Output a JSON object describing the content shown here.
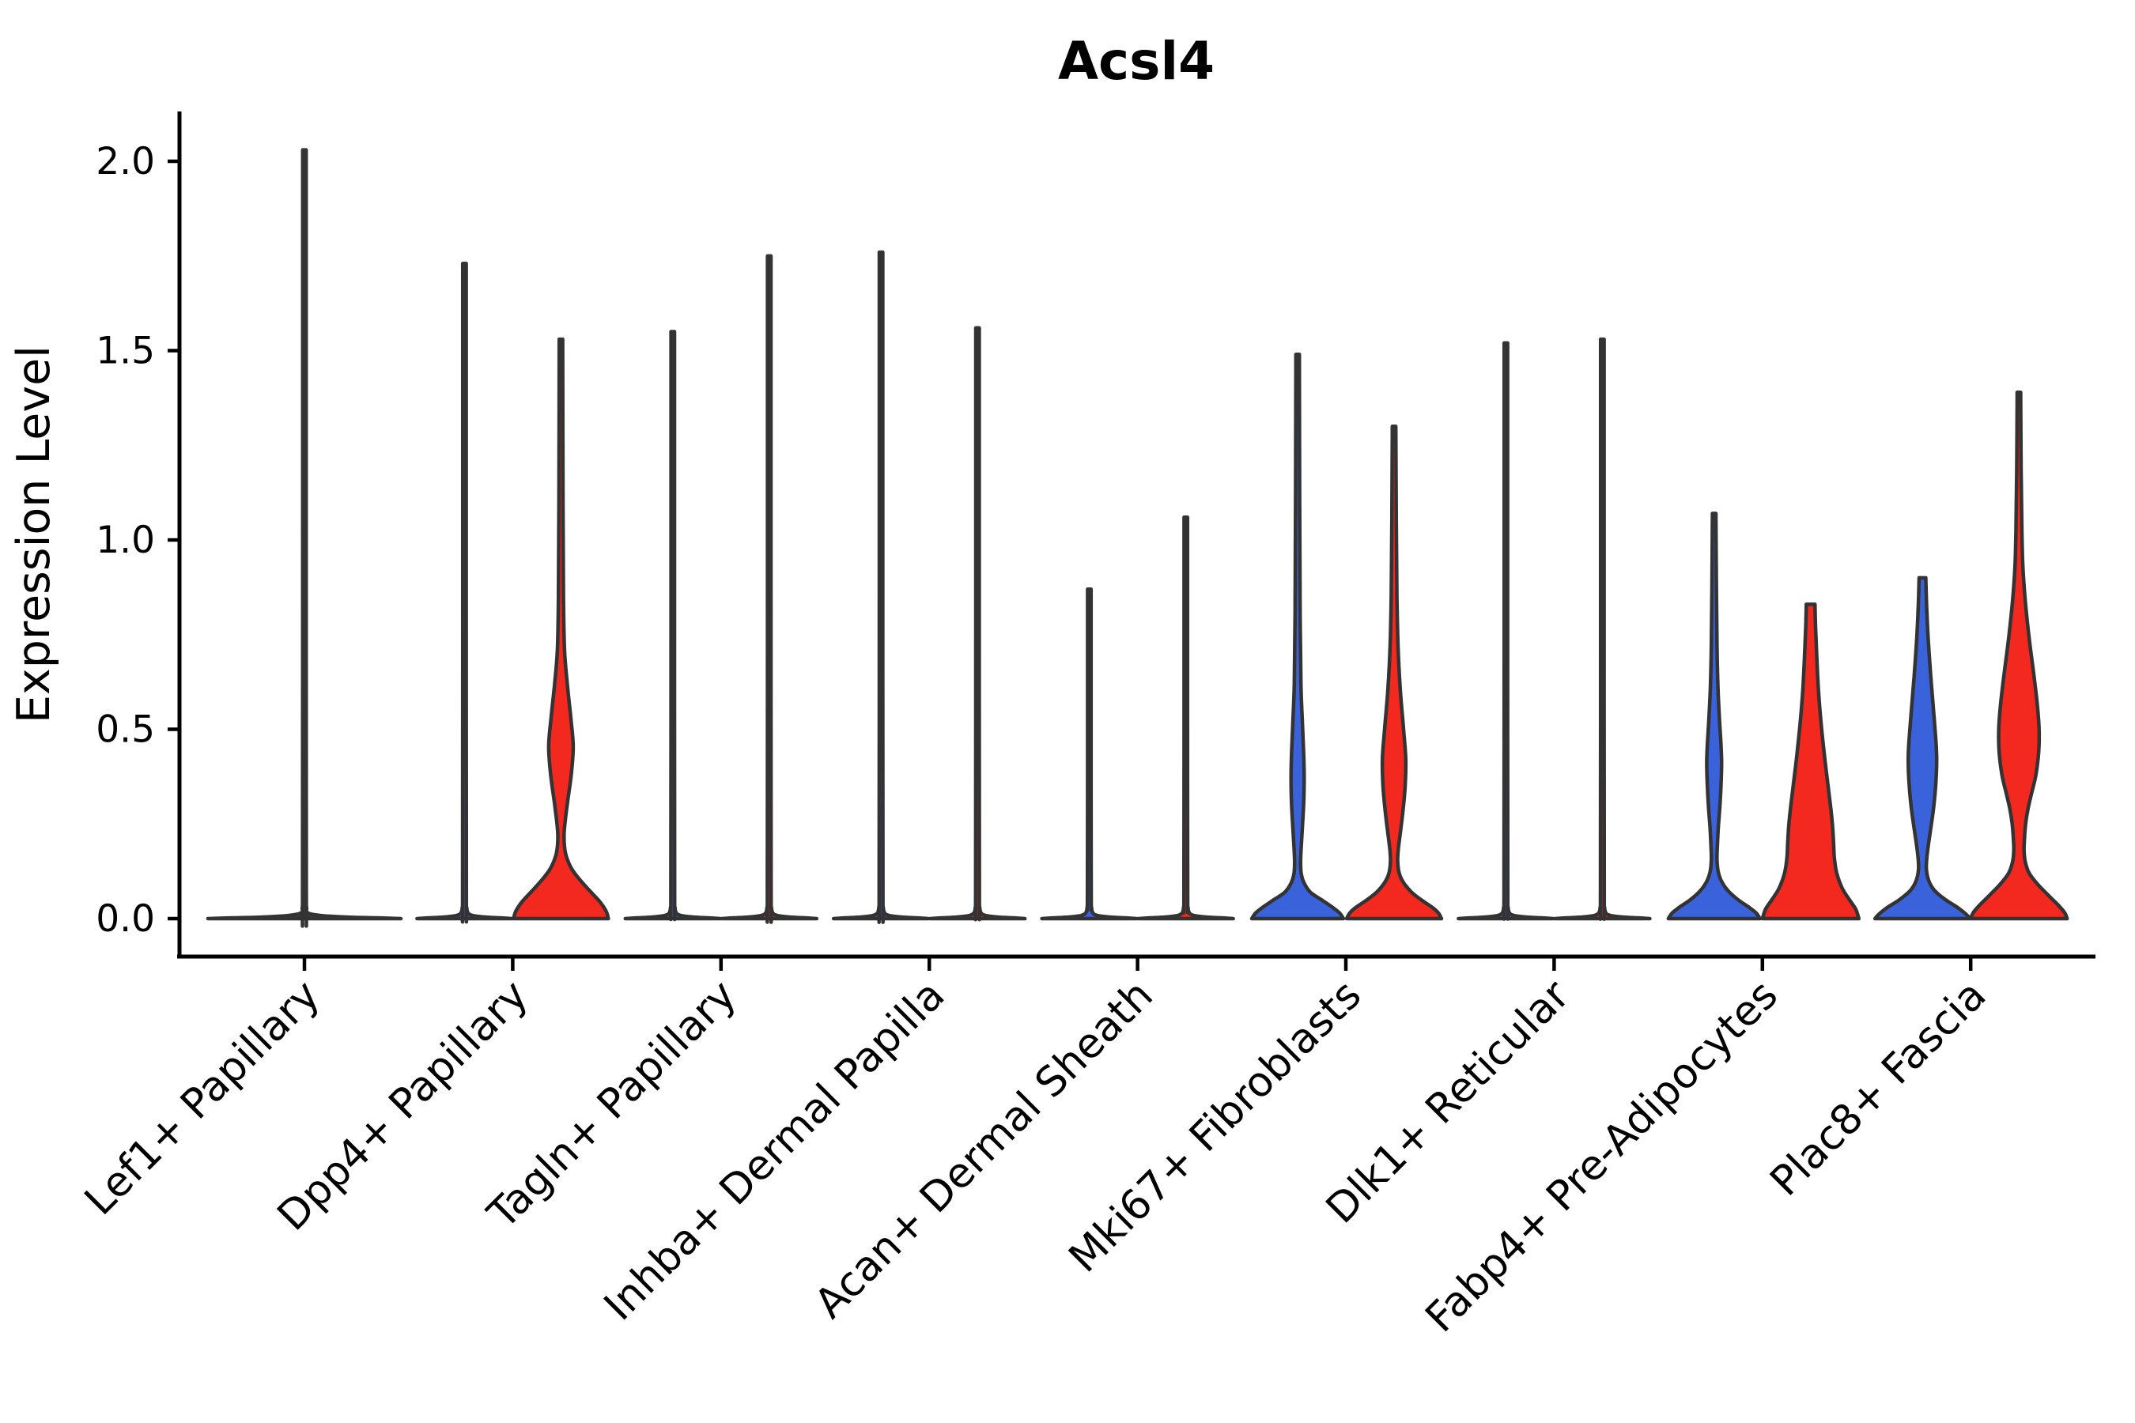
{
  "chart_data": {
    "type": "violin",
    "title": "Acsl4",
    "ylabel": "Expression Level",
    "xlabel": "",
    "ylim": [
      0,
      2.25
    ],
    "yticks": [
      0.0,
      0.5,
      1.0,
      1.5,
      2.0
    ],
    "ytick_labels": [
      "0.0",
      "0.5",
      "1.0",
      "1.5",
      "2.0"
    ],
    "grid": false,
    "legend_position": "none",
    "background_color": "#ffffff",
    "axis_color": "#000000",
    "outline_color": "#333333",
    "groups": {
      "blue": "#3A63DB",
      "red": "#F3281F",
      "single": "#3a3a3a"
    },
    "categories": [
      "Lef1+ Papillary",
      "Dpp4+ Papillary",
      "Tagln+ Papillary",
      "Inhba+ Dermal Papilla",
      "Acan+ Dermal Sheath",
      "Mki67+ Fibroblasts",
      "Dlk1+ Reticular",
      "Fabp4+ Pre-Adipocytes",
      "Plac8+ Fascia"
    ],
    "violins": [
      {
        "category_index": 0,
        "group": "single",
        "shape": "spike",
        "max": 2.03
      },
      {
        "category_index": 1,
        "group": "blue",
        "shape": "spike",
        "max": 1.73
      },
      {
        "category_index": 1,
        "group": "red",
        "shape": "body",
        "max": 1.53,
        "profile": [
          [
            1.53,
            2.2
          ],
          [
            1.1,
            2.6
          ],
          [
            0.85,
            3.2
          ],
          [
            0.71,
            4.5
          ],
          [
            0.62,
            8
          ],
          [
            0.53,
            12.5
          ],
          [
            0.455,
            15.5
          ],
          [
            0.38,
            13
          ],
          [
            0.31,
            8.5
          ],
          [
            0.26,
            5.5
          ],
          [
            0.225,
            4
          ],
          [
            0.19,
            4.5
          ],
          [
            0.163,
            7
          ],
          [
            0.13,
            14
          ],
          [
            0.1,
            25
          ],
          [
            0.07,
            38
          ],
          [
            0.045,
            49
          ],
          [
            0.02,
            57
          ],
          [
            0,
            60
          ]
        ]
      },
      {
        "category_index": 2,
        "group": "blue",
        "shape": "spike",
        "max": 1.55
      },
      {
        "category_index": 2,
        "group": "red",
        "shape": "spike",
        "max": 1.75
      },
      {
        "category_index": 3,
        "group": "blue",
        "shape": "spike",
        "max": 1.76
      },
      {
        "category_index": 3,
        "group": "red",
        "shape": "spike",
        "max": 1.56
      },
      {
        "category_index": 4,
        "group": "blue",
        "shape": "spike",
        "max": 0.87
      },
      {
        "category_index": 4,
        "group": "red",
        "shape": "spike",
        "max": 1.06
      },
      {
        "category_index": 5,
        "group": "blue",
        "shape": "body",
        "max": 1.49,
        "profile": [
          [
            1.49,
            2.2
          ],
          [
            1.1,
            2.6
          ],
          [
            0.8,
            3.2
          ],
          [
            0.62,
            4.2
          ],
          [
            0.52,
            6
          ],
          [
            0.44,
            7.6
          ],
          [
            0.37,
            8.3
          ],
          [
            0.3,
            7.6
          ],
          [
            0.24,
            6
          ],
          [
            0.19,
            4.6
          ],
          [
            0.15,
            3.8
          ],
          [
            0.12,
            4.5
          ],
          [
            0.095,
            8
          ],
          [
            0.07,
            16
          ],
          [
            0.05,
            30
          ],
          [
            0.03,
            44
          ],
          [
            0.015,
            53
          ],
          [
            0,
            58
          ]
        ]
      },
      {
        "category_index": 5,
        "group": "red",
        "shape": "body",
        "max": 1.3,
        "profile": [
          [
            1.3,
            2.2
          ],
          [
            1.05,
            2.8
          ],
          [
            0.85,
            3.6
          ],
          [
            0.72,
            5
          ],
          [
            0.6,
            8
          ],
          [
            0.5,
            12
          ],
          [
            0.42,
            14.8
          ],
          [
            0.35,
            14
          ],
          [
            0.28,
            11
          ],
          [
            0.22,
            7.5
          ],
          [
            0.18,
            5.2
          ],
          [
            0.15,
            4.6
          ],
          [
            0.12,
            6.5
          ],
          [
            0.095,
            12
          ],
          [
            0.07,
            22
          ],
          [
            0.05,
            34
          ],
          [
            0.03,
            48
          ],
          [
            0.015,
            56
          ],
          [
            0,
            60
          ]
        ]
      },
      {
        "category_index": 6,
        "group": "blue",
        "shape": "spike",
        "max": 1.52
      },
      {
        "category_index": 6,
        "group": "red",
        "shape": "spike",
        "max": 1.53
      },
      {
        "category_index": 7,
        "group": "blue",
        "shape": "body",
        "max": 1.07,
        "profile": [
          [
            1.07,
            2.2
          ],
          [
            0.88,
            2.8
          ],
          [
            0.72,
            3.6
          ],
          [
            0.61,
            4.8
          ],
          [
            0.53,
            6.6
          ],
          [
            0.46,
            8.6
          ],
          [
            0.41,
            9.4
          ],
          [
            0.35,
            8.6
          ],
          [
            0.29,
            7
          ],
          [
            0.24,
            5.2
          ],
          [
            0.19,
            4
          ],
          [
            0.155,
            3.6
          ],
          [
            0.125,
            5
          ],
          [
            0.1,
            9
          ],
          [
            0.075,
            17
          ],
          [
            0.05,
            30
          ],
          [
            0.03,
            44
          ],
          [
            0.015,
            53
          ],
          [
            0,
            58
          ]
        ]
      },
      {
        "category_index": 7,
        "group": "red",
        "shape": "body",
        "max": 0.83,
        "profile": [
          [
            0.83,
            5.5
          ],
          [
            0.77,
            6.2
          ],
          [
            0.69,
            7.8
          ],
          [
            0.6,
            10
          ],
          [
            0.51,
            13.5
          ],
          [
            0.43,
            17.5
          ],
          [
            0.36,
            21.5
          ],
          [
            0.3,
            25
          ],
          [
            0.25,
            27.5
          ],
          [
            0.2,
            29
          ],
          [
            0.16,
            30
          ],
          [
            0.12,
            33
          ],
          [
            0.08,
            40
          ],
          [
            0.05,
            49
          ],
          [
            0.025,
            57
          ],
          [
            0,
            61
          ]
        ]
      },
      {
        "category_index": 8,
        "group": "blue",
        "shape": "body",
        "max": 0.9,
        "profile": [
          [
            0.9,
            4.2
          ],
          [
            0.83,
            5.2
          ],
          [
            0.74,
            7.2
          ],
          [
            0.64,
            10.5
          ],
          [
            0.55,
            14
          ],
          [
            0.47,
            17
          ],
          [
            0.42,
            18
          ],
          [
            0.36,
            17
          ],
          [
            0.3,
            14.5
          ],
          [
            0.245,
            11
          ],
          [
            0.195,
            7.5
          ],
          [
            0.16,
            5.5
          ],
          [
            0.13,
            5
          ],
          [
            0.1,
            8
          ],
          [
            0.075,
            15
          ],
          [
            0.05,
            29
          ],
          [
            0.03,
            44
          ],
          [
            0.012,
            55
          ],
          [
            0,
            60
          ]
        ]
      },
      {
        "category_index": 8,
        "group": "red",
        "shape": "body",
        "max": 1.39,
        "profile": [
          [
            1.39,
            2.2
          ],
          [
            1.18,
            2.8
          ],
          [
            1.02,
            3.8
          ],
          [
            0.93,
            5
          ],
          [
            0.84,
            8
          ],
          [
            0.74,
            13
          ],
          [
            0.65,
            18.5
          ],
          [
            0.57,
            23
          ],
          [
            0.5,
            25.5
          ],
          [
            0.44,
            25
          ],
          [
            0.38,
            21.5
          ],
          [
            0.335,
            16.5
          ],
          [
            0.29,
            11.5
          ],
          [
            0.25,
            8.5
          ],
          [
            0.21,
            7
          ],
          [
            0.18,
            6.5
          ],
          [
            0.15,
            8
          ],
          [
            0.12,
            13
          ],
          [
            0.09,
            24
          ],
          [
            0.06,
            38
          ],
          [
            0.035,
            50
          ],
          [
            0.015,
            58
          ],
          [
            0,
            61
          ]
        ]
      }
    ]
  }
}
